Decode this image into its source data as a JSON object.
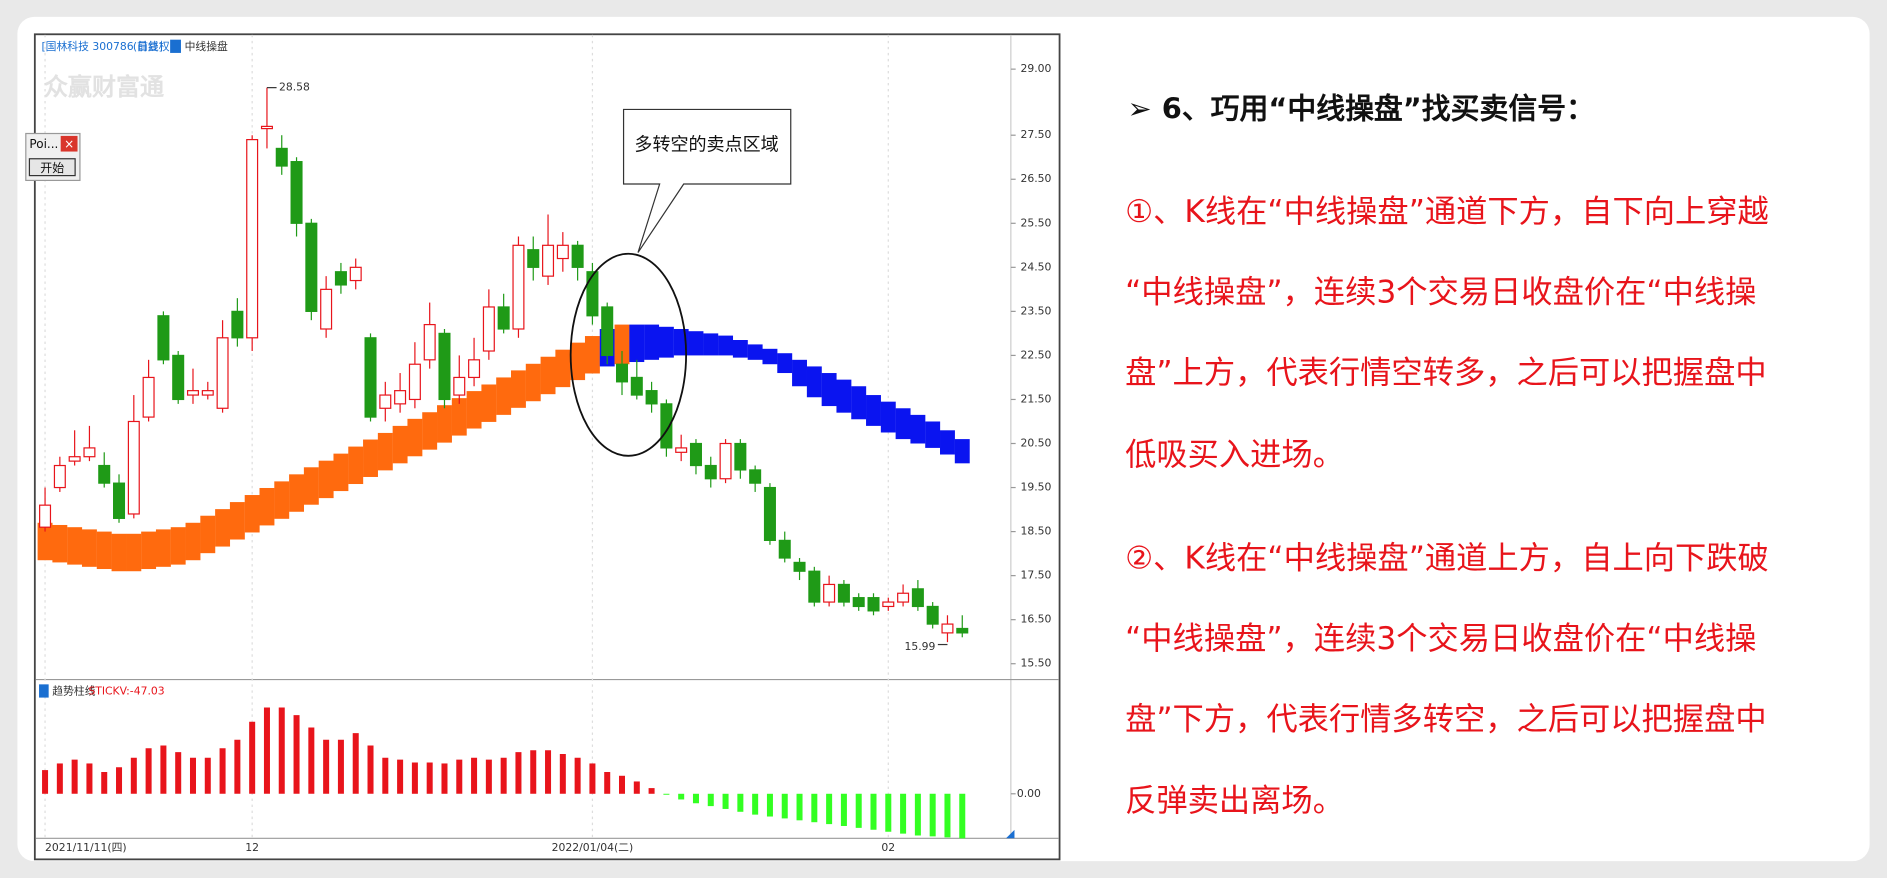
{
  "chart_data": [
    {
      "type": "candlestick",
      "title": "[国林科技 300786 日线]",
      "subtitle": "(前复权)",
      "legend": "中线操盘",
      "watermark": "众赢财富通",
      "callout": "多转空的卖点区域",
      "max_label": 28.58,
      "min_label": 15.99,
      "categories": [
        "2021/11/11(四)",
        null,
        null,
        null,
        null,
        null,
        null,
        null,
        null,
        null,
        null,
        null,
        null,
        null,
        "12",
        null,
        null,
        null,
        null,
        null,
        null,
        null,
        null,
        null,
        null,
        null,
        null,
        null,
        null,
        null,
        null,
        null,
        null,
        null,
        null,
        null,
        null,
        "2022/01/04(二)",
        null,
        null,
        null,
        null,
        null,
        null,
        null,
        null,
        null,
        null,
        null,
        null,
        null,
        null,
        null,
        null,
        null,
        null,
        null,
        "02",
        null,
        null,
        null,
        null,
        null
      ],
      "open": [
        18.6,
        19.5,
        20.1,
        20.2,
        20.0,
        19.6,
        18.9,
        21.1,
        23.4,
        22.5,
        21.6,
        21.6,
        21.3,
        23.5,
        22.9,
        27.65,
        27.2,
        26.9,
        25.5,
        23.1,
        24.4,
        24.2,
        22.9,
        21.3,
        21.4,
        21.5,
        22.4,
        23.0,
        21.6,
        22.0,
        22.6,
        23.6,
        23.1,
        24.9,
        24.3,
        24.7,
        25.0,
        24.4,
        23.6,
        22.3,
        22.0,
        21.7,
        21.4,
        20.3,
        20.5,
        20.0,
        19.7,
        20.5,
        19.9,
        19.5,
        18.3,
        17.8,
        17.6,
        16.9,
        17.3,
        17.0,
        17.0,
        16.8,
        16.9,
        17.2,
        16.8,
        16.2,
        16.3
      ],
      "high": [
        19.5,
        20.2,
        20.8,
        20.9,
        20.3,
        19.8,
        21.6,
        22.4,
        23.5,
        22.6,
        22.2,
        21.9,
        23.3,
        23.8,
        27.5,
        28.58,
        27.5,
        27.0,
        25.6,
        24.3,
        24.6,
        24.7,
        23.0,
        21.9,
        22.1,
        22.8,
        23.7,
        23.1,
        22.5,
        22.9,
        24.0,
        23.9,
        25.2,
        25.2,
        25.7,
        25.3,
        25.1,
        24.6,
        23.7,
        22.6,
        22.4,
        21.9,
        21.5,
        20.7,
        20.6,
        20.2,
        20.6,
        20.6,
        20.0,
        19.6,
        18.5,
        17.9,
        17.7,
        17.5,
        17.4,
        17.1,
        17.1,
        17.0,
        17.3,
        17.4,
        16.9,
        16.6,
        16.6
      ],
      "low": [
        18.5,
        19.4,
        20.0,
        20.1,
        19.5,
        18.7,
        18.8,
        21.0,
        22.3,
        21.4,
        21.4,
        21.5,
        21.2,
        22.7,
        22.6,
        27.2,
        26.6,
        25.2,
        23.3,
        22.9,
        23.9,
        24.0,
        21.0,
        21.0,
        21.2,
        21.3,
        22.2,
        21.3,
        21.4,
        21.8,
        22.4,
        23.0,
        22.9,
        24.2,
        24.1,
        24.4,
        24.2,
        23.2,
        22.3,
        21.6,
        21.5,
        21.2,
        20.2,
        20.1,
        19.8,
        19.5,
        19.6,
        19.7,
        19.4,
        18.2,
        17.8,
        17.4,
        16.8,
        16.8,
        16.8,
        16.7,
        16.6,
        16.7,
        16.8,
        16.7,
        16.3,
        15.99,
        16.1
      ],
      "close": [
        19.1,
        20.0,
        20.2,
        20.4,
        19.6,
        18.8,
        21.0,
        22.0,
        22.4,
        21.5,
        21.7,
        21.7,
        22.9,
        22.9,
        27.4,
        27.7,
        26.8,
        25.5,
        23.5,
        24.0,
        24.1,
        24.5,
        21.1,
        21.6,
        21.7,
        22.3,
        23.2,
        21.5,
        22.0,
        22.4,
        23.6,
        23.1,
        25.0,
        24.5,
        25.0,
        25.0,
        24.5,
        23.4,
        22.5,
        21.9,
        21.6,
        21.4,
        20.4,
        20.4,
        20.0,
        19.7,
        20.5,
        19.9,
        19.6,
        18.3,
        17.9,
        17.6,
        16.9,
        17.3,
        16.9,
        16.8,
        16.7,
        16.9,
        17.1,
        16.8,
        16.4,
        16.4,
        16.2
      ],
      "up_color": "#e8141b",
      "down_color": "#1f9a17",
      "band": {
        "upper": [
          18.7,
          18.65,
          18.6,
          18.55,
          18.5,
          18.45,
          18.45,
          18.5,
          18.55,
          18.6,
          18.7,
          18.86,
          19.01,
          19.17,
          19.33,
          19.49,
          19.64,
          19.8,
          19.96,
          20.11,
          20.27,
          20.43,
          20.59,
          20.74,
          20.9,
          21.06,
          21.21,
          21.37,
          21.53,
          21.69,
          21.84,
          22.0,
          22.16,
          22.31,
          22.47,
          22.63,
          22.79,
          22.94,
          23.1,
          23.2,
          23.2,
          23.2,
          23.15,
          23.1,
          23.05,
          23.0,
          22.95,
          22.85,
          22.75,
          22.65,
          22.55,
          22.4,
          22.25,
          22.1,
          21.95,
          21.8,
          21.6,
          21.45,
          21.3,
          21.15,
          21.0,
          20.8,
          20.6
        ],
        "lower": [
          17.85,
          17.8,
          17.75,
          17.7,
          17.65,
          17.6,
          17.6,
          17.65,
          17.7,
          17.75,
          17.85,
          18.01,
          18.16,
          18.32,
          18.48,
          18.64,
          18.79,
          18.95,
          19.11,
          19.26,
          19.42,
          19.58,
          19.74,
          19.89,
          20.05,
          20.21,
          20.36,
          20.52,
          20.68,
          20.84,
          20.99,
          21.15,
          21.31,
          21.46,
          21.62,
          21.78,
          21.94,
          22.09,
          22.25,
          22.3,
          22.35,
          22.4,
          22.45,
          22.5,
          22.5,
          22.5,
          22.5,
          22.45,
          22.4,
          22.3,
          22.1,
          21.8,
          21.55,
          21.35,
          21.2,
          21.05,
          20.9,
          20.75,
          20.6,
          20.5,
          20.4,
          20.25,
          20.05
        ],
        "colors": [
          "#ff6a0e",
          "#ff6a0e",
          "#ff6a0e",
          "#ff6a0e",
          "#ff6a0e",
          "#ff6a0e",
          "#ff6a0e",
          "#ff6a0e",
          "#ff6a0e",
          "#ff6a0e",
          "#ff6a0e",
          "#ff6a0e",
          "#ff6a0e",
          "#ff6a0e",
          "#ff6a0e",
          "#ff6a0e",
          "#ff6a0e",
          "#ff6a0e",
          "#ff6a0e",
          "#ff6a0e",
          "#ff6a0e",
          "#ff6a0e",
          "#ff6a0e",
          "#ff6a0e",
          "#ff6a0e",
          "#ff6a0e",
          "#ff6a0e",
          "#ff6a0e",
          "#ff6a0e",
          "#ff6a0e",
          "#ff6a0e",
          "#ff6a0e",
          "#ff6a0e",
          "#ff6a0e",
          "#ff6a0e",
          "#ff6a0e",
          "#ff6a0e",
          "#ff6a0e",
          "#0a14f0",
          "#ff6a0e",
          "#0a14f0",
          "#0a14f0",
          "#0a14f0",
          "#0a14f0",
          "#0a14f0",
          "#0a14f0",
          "#0a14f0",
          "#0a14f0",
          "#0a14f0",
          "#0a14f0",
          "#0a14f0",
          "#0a14f0",
          "#0a14f0",
          "#0a14f0",
          "#0a14f0",
          "#0a14f0",
          "#0a14f0",
          "#0a14f0",
          "#0a14f0",
          "#0a14f0",
          "#0a14f0",
          "#0a14f0",
          "#0a14f0"
        ]
      },
      "ylim": [
        15.4,
        29.3
      ],
      "yticks": [
        {
          "value": 29,
          "label": "29.00"
        },
        {
          "value": 27.5,
          "label": "27.50"
        },
        {
          "value": 26.5,
          "label": "26.50"
        },
        {
          "value": 25.5,
          "label": "25.50"
        },
        {
          "value": 24.5,
          "label": "24.50"
        },
        {
          "value": 23.5,
          "label": "23.50"
        },
        {
          "value": 22.5,
          "label": "22.50"
        },
        {
          "value": 21.5,
          "label": "21.50"
        },
        {
          "value": 20.5,
          "label": "20.50"
        },
        {
          "value": 19.5,
          "label": "19.50"
        },
        {
          "value": 18.5,
          "label": "18.50"
        },
        {
          "value": 17.5,
          "label": "17.50"
        },
        {
          "value": 16.5,
          "label": "16.50"
        },
        {
          "value": 15.5,
          "label": "15.50"
        }
      ]
    },
    {
      "type": "bar",
      "title": "趋势柱线",
      "value_text": "STICKV:-47.03",
      "values": [
        25,
        32,
        36,
        32,
        23,
        28,
        38,
        48,
        51,
        44,
        38,
        38,
        48,
        57,
        76,
        91,
        91,
        83,
        70,
        57,
        57,
        64,
        51,
        38,
        36,
        33,
        33,
        32,
        36,
        38,
        36,
        38,
        44,
        46,
        46,
        42,
        38,
        32,
        23,
        19,
        13,
        6,
        -1,
        -6,
        -10,
        -13,
        -16,
        -19,
        -22,
        -24,
        -26,
        -28,
        -30,
        -32,
        -34,
        -36,
        -38,
        -40,
        -42,
        -44,
        -45,
        -46,
        -47.03
      ],
      "positive_color": "#e8141b",
      "negative_color": "#33ff22",
      "ylim": [
        -48,
        118
      ],
      "yticks": [
        {
          "value": 0,
          "label": "0.00"
        }
      ]
    }
  ],
  "window": {
    "title": "Poi...",
    "close": "×",
    "button": "开始"
  },
  "slide": {
    "title": "➢ 6、巧用“中线操盘”找买卖信号：",
    "paragraphs": [
      [
        "①、K线在“中线操盘”通道下方，自下向上穿越",
        "“中线操盘”，连续3个交易日收盘价在“中线操",
        "盘”上方，代表行情空转多，之后可以把握盘中",
        "低吸买入进场。"
      ],
      [
        "②、K线在“中线操盘”通道上方，自上向下跌破",
        "“中线操盘”，连续3个交易日收盘价在“中线操",
        "盘”下方，代表行情多转空，之后可以把握盘中",
        "反弹卖出离场。"
      ]
    ]
  }
}
